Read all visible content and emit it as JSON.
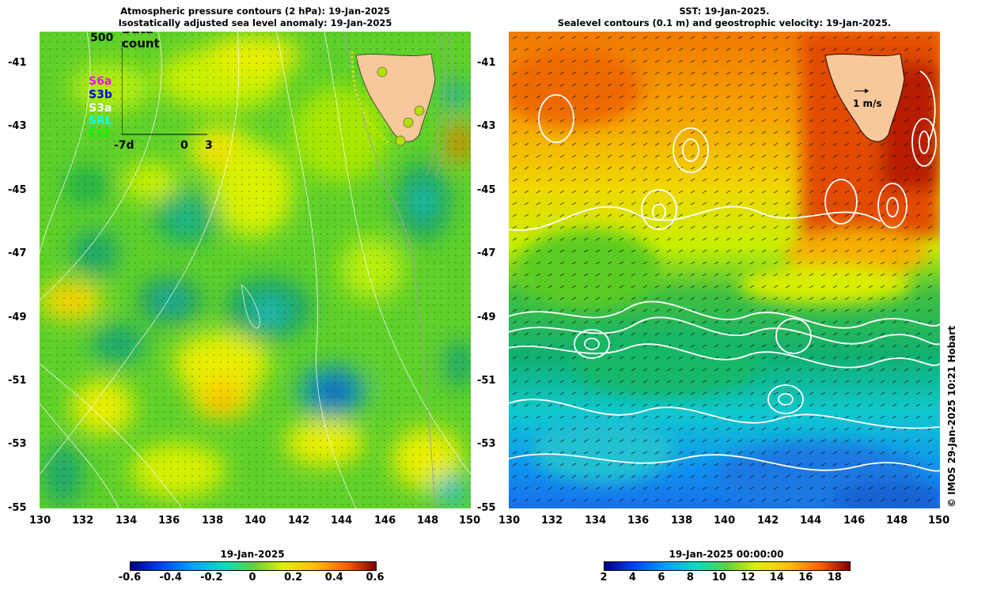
{
  "left_panel": {
    "title_line1": "Atmospheric pressure contours (2 hPa): 19-Jan-2025",
    "title_line2": "Isostatically adjusted sea level anomaly: 19-Jan-2025",
    "y_ticks": [
      "-41",
      "-43",
      "-45",
      "-47",
      "-49",
      "-51",
      "-53",
      "-55"
    ],
    "x_ticks": [
      "130",
      "132",
      "134",
      "136",
      "138",
      "140",
      "142",
      "144",
      "146",
      "148",
      "150"
    ],
    "inset": {
      "title": "Data count",
      "max_label": "500",
      "x_labels": [
        "-7d",
        "0",
        "3"
      ],
      "legend": [
        {
          "label": "S6a",
          "color": "#ff00ff"
        },
        {
          "label": "S3b",
          "color": "#0000ff"
        },
        {
          "label": "S3a",
          "color": "#ffffff"
        },
        {
          "label": "SRL",
          "color": "#00ffff"
        },
        {
          "label": "Cr2",
          "color": "#00ff00"
        }
      ]
    },
    "colorbar": {
      "label": "19-Jan-2025",
      "ticks": [
        "-0.6",
        "-0.4",
        "-0.2",
        "0",
        "0.2",
        "0.4",
        "0.6"
      ]
    }
  },
  "right_panel": {
    "title_line1": "SST: 19-Jan-2025.",
    "title_line2": "Sealevel contours (0.1 m) and geostrophic velocity: 19-Jan-2025.",
    "y_ticks": [
      "-41",
      "-43",
      "-45",
      "-47",
      "-49",
      "-51",
      "-53",
      "-55"
    ],
    "x_ticks": [
      "130",
      "132",
      "134",
      "136",
      "138",
      "140",
      "142",
      "144",
      "146",
      "148",
      "150"
    ],
    "velocity_key": "1 m/s",
    "colorbar": {
      "label": "19-Jan-2025 00:00:00",
      "ticks": [
        "2",
        "4",
        "6",
        "8",
        "10",
        "12",
        "14",
        "16",
        "18"
      ]
    }
  },
  "credit": "© IMOS 29-Jan-2025 10:21 Hobart"
}
